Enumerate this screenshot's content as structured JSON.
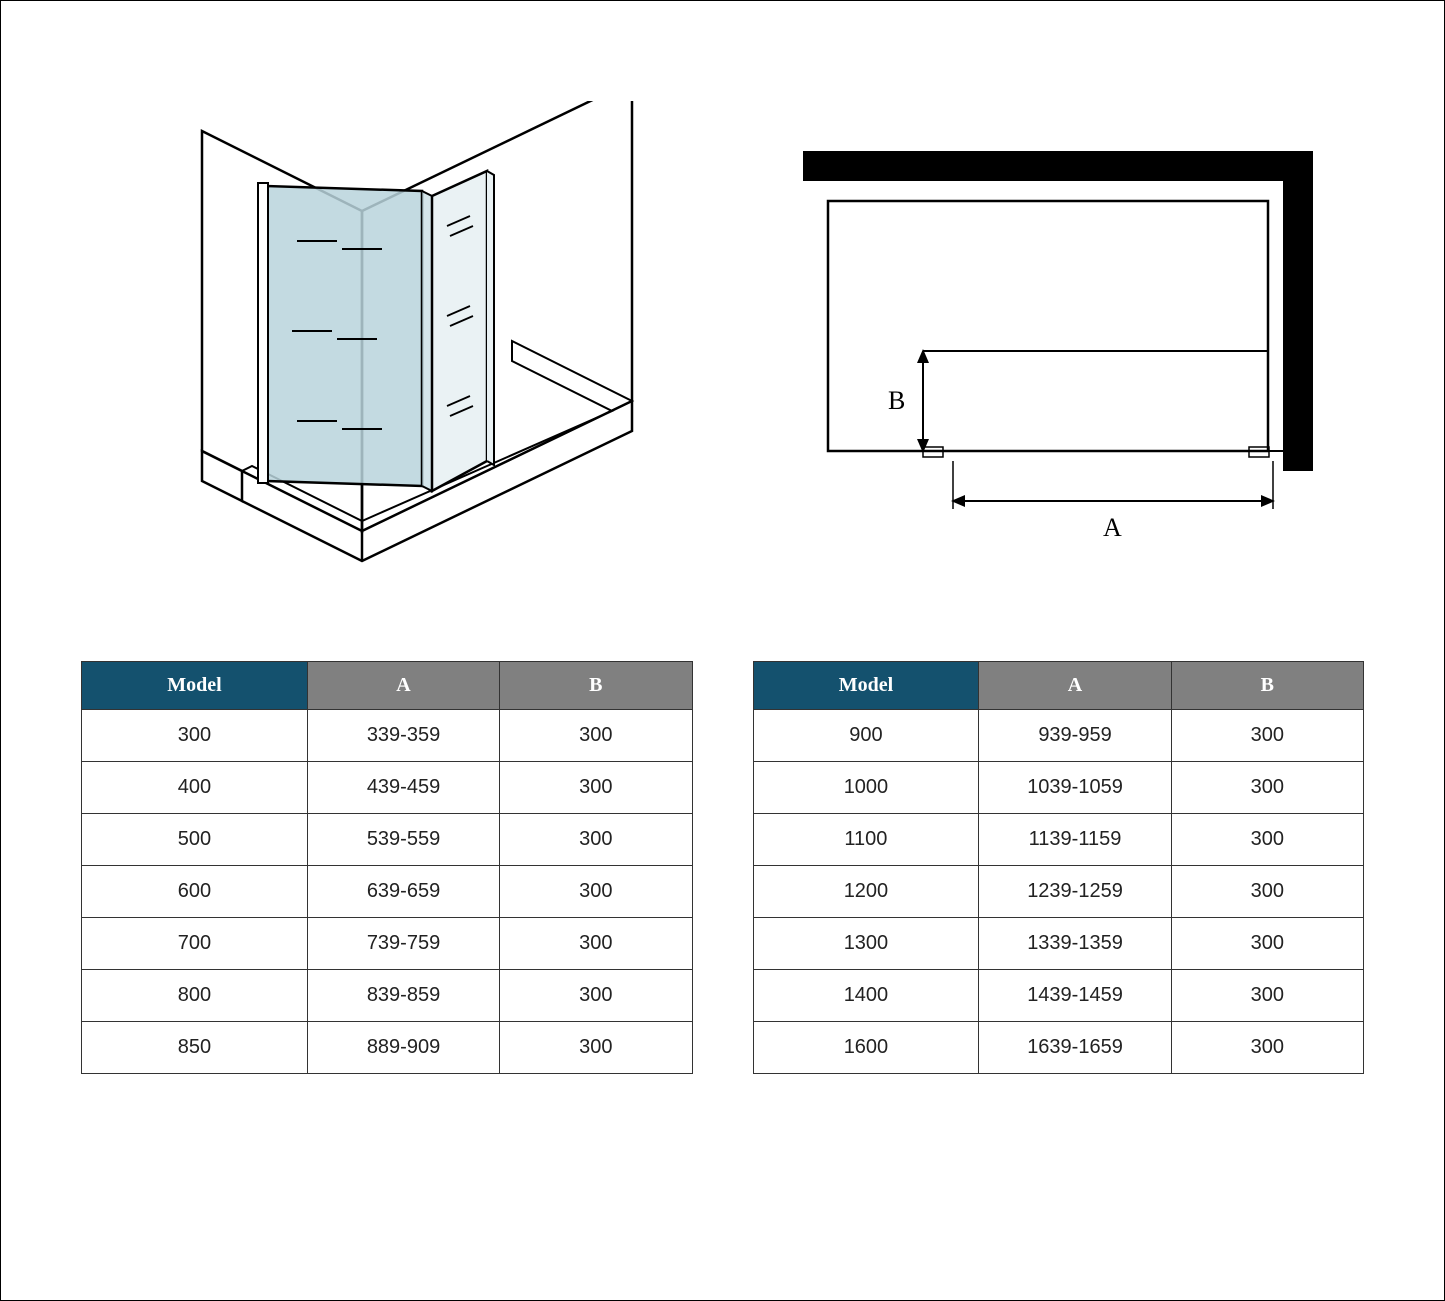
{
  "colors": {
    "header_model_bg": "#14516e",
    "header_ab_bg": "#808080",
    "header_text": "#ffffff",
    "border": "#333333",
    "cell_text": "#222222",
    "glass_fill": "#b8d4dc",
    "line": "#000000",
    "dim_label": "#000000"
  },
  "dim_labels": {
    "A": "A",
    "B": "B"
  },
  "tables": {
    "columns": [
      "Model",
      "A",
      "B"
    ],
    "left": {
      "rows": [
        [
          "300",
          "339-359",
          "300"
        ],
        [
          "400",
          "439-459",
          "300"
        ],
        [
          "500",
          "539-559",
          "300"
        ],
        [
          "600",
          "639-659",
          "300"
        ],
        [
          "700",
          "739-759",
          "300"
        ],
        [
          "800",
          "839-859",
          "300"
        ],
        [
          "850",
          "889-909",
          "300"
        ]
      ]
    },
    "right": {
      "rows": [
        [
          "900",
          "939-959",
          "300"
        ],
        [
          "1000",
          "1039-1059",
          "300"
        ],
        [
          "1100",
          "1139-1159",
          "300"
        ],
        [
          "1200",
          "1239-1259",
          "300"
        ],
        [
          "1300",
          "1339-1359",
          "300"
        ],
        [
          "1400",
          "1439-1459",
          "300"
        ],
        [
          "1600",
          "1639-1659",
          "300"
        ]
      ]
    }
  }
}
